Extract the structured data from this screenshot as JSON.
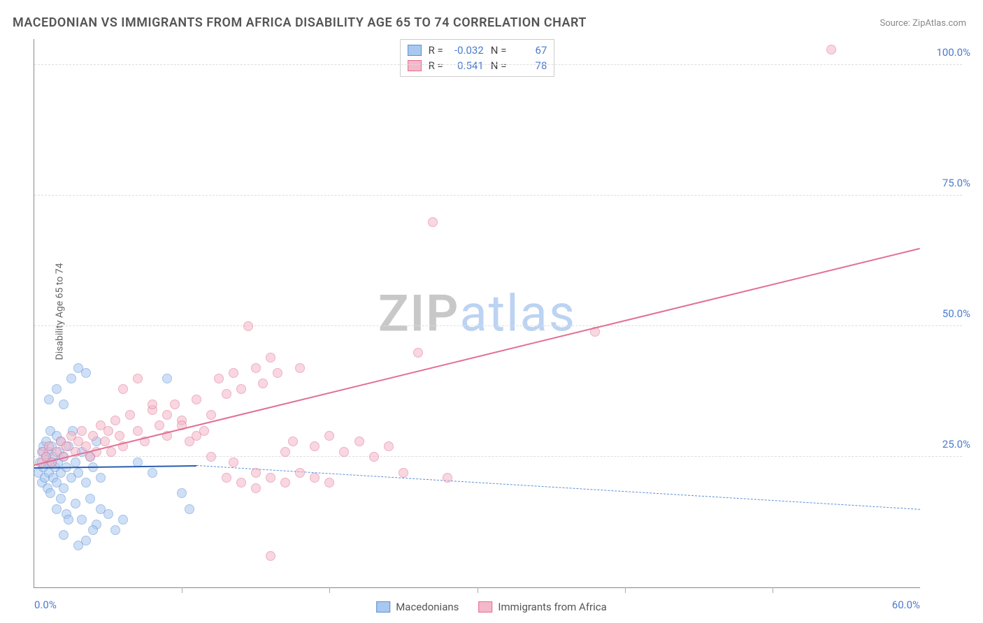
{
  "title": "MACEDONIAN VS IMMIGRANTS FROM AFRICA DISABILITY AGE 65 TO 74 CORRELATION CHART",
  "source_prefix": "Source: ",
  "source_name": "ZipAtlas.com",
  "y_axis_label": "Disability Age 65 to 74",
  "watermark_zip": "ZIP",
  "watermark_rest": "atlas",
  "chart": {
    "type": "scatter",
    "background_color": "#ffffff",
    "grid_color": "#dddddd",
    "axis_color": "#888888",
    "label_color": "#4a7bd0",
    "xlim": [
      0,
      60
    ],
    "ylim": [
      0,
      105
    ],
    "y_ticks": [
      25,
      50,
      75,
      100
    ],
    "y_tick_labels": [
      "25.0%",
      "50.0%",
      "75.0%",
      "100.0%"
    ],
    "x_minor_ticks": [
      10,
      20,
      30,
      40,
      50
    ],
    "x_end_labels": [
      "0.0%",
      "60.0%"
    ],
    "point_radius": 7,
    "series": [
      {
        "name": "Macedonians",
        "fill": "#a9c8ef",
        "stroke": "#5a8fd6",
        "fill_opacity": 0.55,
        "trend": {
          "x1": 0,
          "y1": 23.0,
          "x2": 11,
          "y2": 23.4,
          "style": "solid",
          "color": "#2a5db0",
          "width": 2
        },
        "trend_ext": {
          "x1": 11,
          "y1": 23.4,
          "x2": 60,
          "y2": 15.0,
          "style": "dashed",
          "color": "#5a8fd6",
          "width": 1.5
        },
        "R": "-0.032",
        "N": "67",
        "points": [
          [
            0.3,
            22
          ],
          [
            0.4,
            24
          ],
          [
            0.5,
            26
          ],
          [
            0.5,
            20
          ],
          [
            0.6,
            23
          ],
          [
            0.6,
            27
          ],
          [
            0.7,
            21
          ],
          [
            0.8,
            25
          ],
          [
            0.8,
            28
          ],
          [
            0.9,
            19
          ],
          [
            0.9,
            24
          ],
          [
            1.0,
            26
          ],
          [
            1.0,
            22
          ],
          [
            1.1,
            30
          ],
          [
            1.1,
            18
          ],
          [
            1.2,
            24
          ],
          [
            1.2,
            27
          ],
          [
            1.3,
            21
          ],
          [
            1.3,
            25
          ],
          [
            1.4,
            23
          ],
          [
            1.5,
            29
          ],
          [
            1.5,
            20
          ],
          [
            1.6,
            24
          ],
          [
            1.7,
            26
          ],
          [
            1.8,
            22
          ],
          [
            1.8,
            28
          ],
          [
            2.0,
            25
          ],
          [
            2.0,
            19
          ],
          [
            2.2,
            23
          ],
          [
            2.3,
            27
          ],
          [
            2.5,
            21
          ],
          [
            2.6,
            30
          ],
          [
            2.8,
            24
          ],
          [
            3.0,
            22
          ],
          [
            3.2,
            26
          ],
          [
            3.5,
            20
          ],
          [
            3.8,
            25
          ],
          [
            4.0,
            23
          ],
          [
            4.2,
            28
          ],
          [
            4.5,
            21
          ],
          [
            1.0,
            36
          ],
          [
            1.5,
            38
          ],
          [
            2.5,
            40
          ],
          [
            3.0,
            42
          ],
          [
            3.5,
            41
          ],
          [
            2.0,
            35
          ],
          [
            2.2,
            14
          ],
          [
            2.8,
            16
          ],
          [
            3.2,
            13
          ],
          [
            3.8,
            17
          ],
          [
            4.2,
            12
          ],
          [
            4.5,
            15
          ],
          [
            5.0,
            14
          ],
          [
            5.5,
            11
          ],
          [
            6.0,
            13
          ],
          [
            2.0,
            10
          ],
          [
            3.0,
            8
          ],
          [
            3.5,
            9
          ],
          [
            4.0,
            11
          ],
          [
            1.5,
            15
          ],
          [
            1.8,
            17
          ],
          [
            2.3,
            13
          ],
          [
            7.0,
            24
          ],
          [
            8.0,
            22
          ],
          [
            9.0,
            40
          ],
          [
            10.0,
            18
          ],
          [
            10.5,
            15
          ]
        ]
      },
      {
        "name": "Immigrants from Africa",
        "fill": "#f4b8c8",
        "stroke": "#e26f94",
        "fill_opacity": 0.55,
        "trend": {
          "x1": 0,
          "y1": 23.5,
          "x2": 60,
          "y2": 65.0,
          "style": "solid",
          "color": "#e26f94",
          "width": 2
        },
        "R": "0.541",
        "N": "78",
        "points": [
          [
            0.5,
            24
          ],
          [
            0.6,
            26
          ],
          [
            0.8,
            25
          ],
          [
            1.0,
            27
          ],
          [
            1.2,
            24
          ],
          [
            1.5,
            26
          ],
          [
            1.8,
            28
          ],
          [
            2.0,
            25
          ],
          [
            2.2,
            27
          ],
          [
            2.5,
            29
          ],
          [
            2.8,
            26
          ],
          [
            3.0,
            28
          ],
          [
            3.2,
            30
          ],
          [
            3.5,
            27
          ],
          [
            3.8,
            25
          ],
          [
            4.0,
            29
          ],
          [
            4.2,
            26
          ],
          [
            4.5,
            31
          ],
          [
            4.8,
            28
          ],
          [
            5.0,
            30
          ],
          [
            5.2,
            26
          ],
          [
            5.5,
            32
          ],
          [
            5.8,
            29
          ],
          [
            6.0,
            27
          ],
          [
            6.5,
            33
          ],
          [
            7.0,
            30
          ],
          [
            7.5,
            28
          ],
          [
            8.0,
            34
          ],
          [
            8.5,
            31
          ],
          [
            9.0,
            29
          ],
          [
            9.5,
            35
          ],
          [
            10.0,
            32
          ],
          [
            10.5,
            28
          ],
          [
            11.0,
            36
          ],
          [
            11.5,
            30
          ],
          [
            12.0,
            33
          ],
          [
            12.5,
            40
          ],
          [
            13.0,
            37
          ],
          [
            13.5,
            41
          ],
          [
            14.0,
            38
          ],
          [
            14.5,
            50
          ],
          [
            15.0,
            42
          ],
          [
            15.5,
            39
          ],
          [
            16.0,
            44
          ],
          [
            16.5,
            41
          ],
          [
            17.0,
            26
          ],
          [
            17.5,
            28
          ],
          [
            18.0,
            42
          ],
          [
            19.0,
            27
          ],
          [
            20.0,
            29
          ],
          [
            21.0,
            26
          ],
          [
            22.0,
            28
          ],
          [
            23.0,
            25
          ],
          [
            24.0,
            27
          ],
          [
            25.0,
            22
          ],
          [
            26.0,
            45
          ],
          [
            27.0,
            70
          ],
          [
            28.0,
            21
          ],
          [
            38.0,
            49
          ],
          [
            54.0,
            103
          ],
          [
            13.0,
            21
          ],
          [
            14.0,
            20
          ],
          [
            15.0,
            22
          ],
          [
            16.0,
            6
          ],
          [
            12.0,
            25
          ],
          [
            13.5,
            24
          ],
          [
            6.0,
            38
          ],
          [
            7.0,
            40
          ],
          [
            8.0,
            35
          ],
          [
            9.0,
            33
          ],
          [
            10.0,
            31
          ],
          [
            11.0,
            29
          ],
          [
            15.0,
            19
          ],
          [
            16.0,
            21
          ],
          [
            17.0,
            20
          ],
          [
            18.0,
            22
          ],
          [
            19.0,
            21
          ],
          [
            20.0,
            20
          ]
        ]
      }
    ]
  },
  "stats_box": {
    "r_label": "R =",
    "n_label": "N ="
  },
  "legend_bottom": [
    "Macedonians",
    "Immigrants from Africa"
  ]
}
